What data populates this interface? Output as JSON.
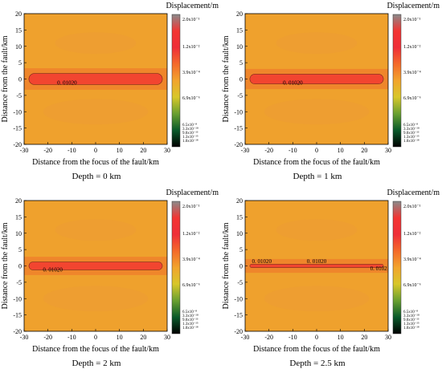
{
  "panels": [
    {
      "depth_label": "Depth = 0 km"
    },
    {
      "depth_label": "Depth = 1 km"
    },
    {
      "depth_label": "Depth = 2 km"
    },
    {
      "depth_label": "Depth = 2.5 km"
    }
  ],
  "colors": {
    "background": "#efa12d",
    "band_outer": "#f0672b",
    "band_inner": "#f24530",
    "lobe": "#ec9c35",
    "colorbar_stops": [
      "#000000",
      "#0a5a2a",
      "#6aa030",
      "#d8c72a",
      "#f2a42d",
      "#f46a2a",
      "#ef2f38",
      "#f33533",
      "#8a8a8a"
    ]
  },
  "chart_data": {
    "type": "heatmap",
    "xlabel": "Distance from the focus of the fault/km",
    "ylabel": "Distance from the fault/km",
    "xlim": [
      -30,
      30
    ],
    "ylim": [
      -20,
      20
    ],
    "x_ticks": [
      -30,
      -20,
      -10,
      0,
      10,
      20,
      30
    ],
    "y_ticks": [
      -20,
      -15,
      -10,
      -5,
      0,
      5,
      10,
      15,
      20
    ],
    "colorbar": {
      "title": "Displacement/m",
      "tick_labels": [
        "2.0x10⁻¹",
        "1.2x10⁻²",
        "3.9x10⁻⁴",
        "6.9x10⁻⁶",
        "6.5x10⁻⁸",
        "3.3x10⁻¹⁰",
        "9.0x10⁻¹³",
        "1.3x10⁻¹⁵",
        "1.0x10⁻¹⁸"
      ]
    },
    "panels": [
      {
        "depth_km": 0,
        "contour_labels": [
          {
            "text": "0. 01020",
            "x": -12,
            "y": -1.7
          }
        ],
        "band_halfwidth": [
          -1.7,
          1.7
        ],
        "band_xlim": [
          -28,
          28
        ]
      },
      {
        "depth_km": 1,
        "contour_labels": [
          {
            "text": "0. 01020",
            "x": -10,
            "y": -1.7
          }
        ],
        "band_halfwidth": [
          -1.5,
          1.5
        ],
        "band_xlim": [
          -28,
          28
        ]
      },
      {
        "depth_km": 2,
        "contour_labels": [
          {
            "text": "0. 01020",
            "x": -18,
            "y": -1.7
          }
        ],
        "band_halfwidth": [
          -1.2,
          1.2
        ],
        "band_xlim": [
          -28,
          28
        ]
      },
      {
        "depth_km": 2.5,
        "contour_labels": [
          {
            "text": "0. 01020",
            "x": -23,
            "y": 0.8
          },
          {
            "text": "0. 01020",
            "x": 0,
            "y": 0.8
          },
          {
            "text": "0. 0102",
            "x": 26,
            "y": -1.4
          }
        ],
        "band_halfwidth": [
          -0.5,
          0.5
        ],
        "band_xlim": [
          -28,
          28
        ]
      }
    ]
  }
}
